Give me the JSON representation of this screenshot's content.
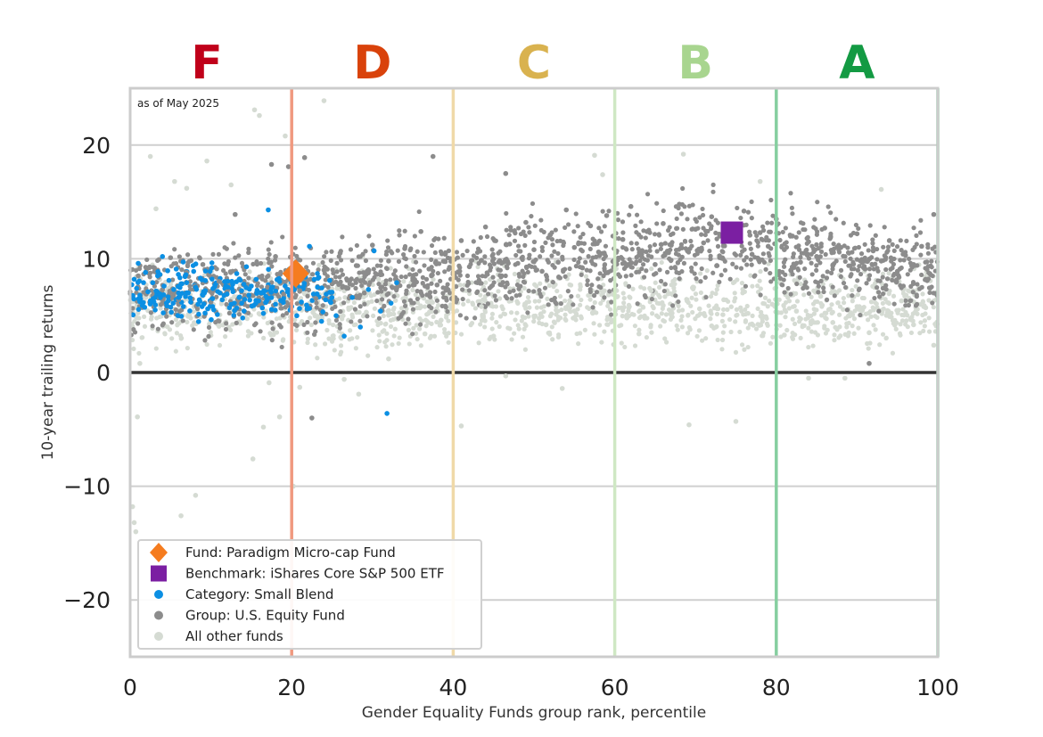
{
  "chart_data": {
    "type": "scatter",
    "note": "as of May 2025",
    "xlabel": "Gender Equality Funds group rank, percentile",
    "ylabel": "10-year trailing returns",
    "xlim": [
      0,
      100
    ],
    "ylim": [
      -25,
      25
    ],
    "x_ticks": [
      0,
      20,
      40,
      60,
      80,
      100
    ],
    "y_ticks": [
      -20,
      -10,
      0,
      10,
      20
    ],
    "grid": "horizontal",
    "grades": [
      {
        "label": "F",
        "center": 9.5,
        "color": "#c0001a"
      },
      {
        "label": "D",
        "center": 30,
        "color": "#d9420b"
      },
      {
        "label": "C",
        "center": 50,
        "color": "#d9b24f"
      },
      {
        "label": "B",
        "center": 70,
        "color": "#a8d58f"
      },
      {
        "label": "A",
        "center": 90,
        "color": "#139a43"
      }
    ],
    "grade_boundaries": [
      {
        "x": 20,
        "color": "#f0997f"
      },
      {
        "x": 40,
        "color": "#f0d9a8"
      },
      {
        "x": 60,
        "color": "#cfe8c4"
      },
      {
        "x": 80,
        "color": "#86cfa0"
      },
      {
        "x": 100,
        "color": "#86cfa0"
      }
    ],
    "legend_position": "lower-left",
    "series": [
      {
        "name": "Fund: Paradigm Micro-cap Fund",
        "marker": "diamond",
        "color": "#f57c1f",
        "points": [
          [
            20.5,
            8.7
          ]
        ]
      },
      {
        "name": "Benchmark: iShares Core S&P 500 ETF",
        "marker": "square",
        "color": "#7b1fa2",
        "points": [
          [
            74.5,
            12.3
          ]
        ]
      },
      {
        "name": "Category: Small Blend",
        "marker": "dot",
        "color": "#0b8fe3",
        "points": [
          [
            0.5,
            8.2
          ],
          [
            0.8,
            7.4
          ],
          [
            1.0,
            9.6
          ],
          [
            1.2,
            6.8
          ],
          [
            1.5,
            5.9
          ],
          [
            1.9,
            8.8
          ],
          [
            2.2,
            7.1
          ],
          [
            2.5,
            6.3
          ],
          [
            2.8,
            7.9
          ],
          [
            3.1,
            5.5
          ],
          [
            3.4,
            8.5
          ],
          [
            3.7,
            6.9
          ],
          [
            4.0,
            10.2
          ],
          [
            4.2,
            7.6
          ],
          [
            4.5,
            6.1
          ],
          [
            4.8,
            8.1
          ],
          [
            5.1,
            5.3
          ],
          [
            5.4,
            7.3
          ],
          [
            5.7,
            9.1
          ],
          [
            6.0,
            6.6
          ],
          [
            6.3,
            7.8
          ],
          [
            6.6,
            5.8
          ],
          [
            6.9,
            8.6
          ],
          [
            7.2,
            7.0
          ],
          [
            7.5,
            6.2
          ],
          [
            7.8,
            9.4
          ],
          [
            8.1,
            7.5
          ],
          [
            8.4,
            6.0
          ],
          [
            8.7,
            8.3
          ],
          [
            9.0,
            6.8
          ],
          [
            9.3,
            7.2
          ],
          [
            9.6,
            5.6
          ],
          [
            9.9,
            8.9
          ],
          [
            10.2,
            6.5
          ],
          [
            10.5,
            7.7
          ],
          [
            10.8,
            5.1
          ],
          [
            11.1,
            7.0
          ],
          [
            11.4,
            6.4
          ],
          [
            11.7,
            8.0
          ],
          [
            12.0,
            6.9
          ],
          [
            12.3,
            5.7
          ],
          [
            12.6,
            7.4
          ],
          [
            12.9,
            6.1
          ],
          [
            13.2,
            8.7
          ],
          [
            13.5,
            6.6
          ],
          [
            13.8,
            7.2
          ],
          [
            14.1,
            5.4
          ],
          [
            14.4,
            9.3
          ],
          [
            14.7,
            6.8
          ],
          [
            15.0,
            7.6
          ],
          [
            15.3,
            5.9
          ],
          [
            15.6,
            8.2
          ],
          [
            15.9,
            6.3
          ],
          [
            16.2,
            7.0
          ],
          [
            16.5,
            5.2
          ],
          [
            16.8,
            6.7
          ],
          [
            17.1,
            14.3
          ],
          [
            17.5,
            7.4
          ],
          [
            18.0,
            6.0
          ],
          [
            18.5,
            8.0
          ],
          [
            19.0,
            6.5
          ],
          [
            19.5,
            7.1
          ],
          [
            20.0,
            5.8
          ],
          [
            20.7,
            7.7
          ],
          [
            21.2,
            6.2
          ],
          [
            21.7,
            8.4
          ],
          [
            22.2,
            11.1
          ],
          [
            22.7,
            6.9
          ],
          [
            23.2,
            7.5
          ],
          [
            23.7,
            4.5
          ],
          [
            24.2,
            6.4
          ],
          [
            24.7,
            8.1
          ],
          [
            25.5,
            5.0
          ],
          [
            26.5,
            3.2
          ],
          [
            27.5,
            6.6
          ],
          [
            28.5,
            4.0
          ],
          [
            29.5,
            7.3
          ],
          [
            30.2,
            10.7
          ],
          [
            31.0,
            5.4
          ],
          [
            31.8,
            -3.6
          ],
          [
            32.3,
            6.1
          ],
          [
            33.0,
            7.9
          ]
        ]
      },
      {
        "name": "Group: U.S. Equity Fund",
        "marker": "dot",
        "color": "#8c8c8c",
        "points": [
          [
            1,
            8.5
          ],
          [
            2,
            6.9
          ],
          [
            3,
            9.2
          ],
          [
            4,
            7.3
          ],
          [
            5,
            10.1
          ],
          [
            6,
            6.4
          ],
          [
            7,
            8.8
          ],
          [
            8,
            7.6
          ],
          [
            9,
            9.5
          ],
          [
            10,
            6.2
          ],
          [
            11,
            8.0
          ],
          [
            12,
            7.1
          ],
          [
            13,
            13.9
          ],
          [
            14,
            9.3
          ],
          [
            15,
            6.8
          ],
          [
            16,
            8.4
          ],
          [
            17,
            7.5
          ],
          [
            17.5,
            18.3
          ],
          [
            18,
            10.2
          ],
          [
            19,
            6.9
          ],
          [
            19.6,
            18.1
          ],
          [
            20.5,
            9.7
          ],
          [
            21,
            7.2
          ],
          [
            21.6,
            18.9
          ],
          [
            22,
            8.9
          ],
          [
            22.5,
            -4.0
          ],
          [
            23,
            6.5
          ],
          [
            24,
            9.0
          ],
          [
            25,
            7.8
          ],
          [
            26,
            10.5
          ],
          [
            27,
            8.1
          ],
          [
            28,
            9.4
          ],
          [
            29,
            7.0
          ],
          [
            30,
            11.2
          ],
          [
            31,
            8.6
          ],
          [
            32,
            9.8
          ],
          [
            33,
            7.4
          ],
          [
            34,
            10.9
          ],
          [
            35,
            8.3
          ],
          [
            36,
            12.4
          ],
          [
            37,
            9.1
          ],
          [
            37.5,
            19.0
          ],
          [
            38,
            7.7
          ],
          [
            39,
            10.4
          ],
          [
            40,
            8.8
          ],
          [
            41,
            11.6
          ],
          [
            42,
            9.3
          ],
          [
            43,
            7.9
          ],
          [
            44,
            12.8
          ],
          [
            45,
            10.0
          ],
          [
            46,
            8.5
          ],
          [
            46.5,
            17.5
          ],
          [
            47,
            11.3
          ],
          [
            48,
            9.6
          ],
          [
            49,
            13.2
          ],
          [
            50,
            10.8
          ],
          [
            51,
            8.9
          ],
          [
            52,
            12.1
          ],
          [
            53,
            9.7
          ],
          [
            54,
            14.3
          ],
          [
            55,
            11.0
          ],
          [
            56,
            9.2
          ],
          [
            57,
            12.9
          ],
          [
            58,
            10.6
          ],
          [
            59,
            13.8
          ],
          [
            60,
            9.9
          ],
          [
            61,
            11.7
          ],
          [
            62,
            14.6
          ],
          [
            63,
            10.3
          ],
          [
            64,
            12.4
          ],
          [
            65,
            9.5
          ],
          [
            66,
            13.1
          ],
          [
            67,
            11.2
          ],
          [
            68,
            14.8
          ],
          [
            69,
            10.7
          ],
          [
            70,
            12.6
          ],
          [
            71,
            11.4
          ],
          [
            72,
            13.7
          ],
          [
            73,
            10.1
          ],
          [
            74,
            12.9
          ],
          [
            75,
            11.8
          ],
          [
            76,
            14.2
          ],
          [
            77,
            10.4
          ],
          [
            78,
            12.3
          ],
          [
            79,
            11.1
          ],
          [
            80,
            13.5
          ],
          [
            81,
            10.8
          ],
          [
            82,
            12.0
          ],
          [
            83,
            9.7
          ],
          [
            84,
            11.5
          ],
          [
            85,
            10.2
          ],
          [
            86,
            12.7
          ],
          [
            87,
            9.4
          ],
          [
            88,
            11.0
          ],
          [
            89,
            10.5
          ],
          [
            90,
            12.2
          ],
          [
            91,
            9.1
          ],
          [
            91.5,
            0.8
          ],
          [
            92,
            10.7
          ],
          [
            93,
            9.8
          ],
          [
            94,
            11.6
          ],
          [
            95,
            8.9
          ],
          [
            96,
            10.3
          ],
          [
            97,
            9.5
          ],
          [
            98,
            11.1
          ],
          [
            99,
            8.7
          ],
          [
            99.5,
            13.9
          ]
        ]
      },
      {
        "name": "All other funds",
        "marker": "dot",
        "color": "#d5dbd3",
        "points": [
          [
            0.3,
            -11.8
          ],
          [
            0.5,
            -13.2
          ],
          [
            0.7,
            -14.0
          ],
          [
            0.9,
            -3.9
          ],
          [
            1.2,
            0.8
          ],
          [
            2.5,
            19.0
          ],
          [
            3.2,
            14.4
          ],
          [
            5.5,
            16.8
          ],
          [
            6.3,
            -12.6
          ],
          [
            7.0,
            16.2
          ],
          [
            8.1,
            -10.8
          ],
          [
            9.5,
            18.6
          ],
          [
            12.5,
            16.5
          ],
          [
            15.2,
            -7.6
          ],
          [
            15.4,
            23.1
          ],
          [
            16.0,
            22.6
          ],
          [
            16.5,
            -4.8
          ],
          [
            17.2,
            -0.9
          ],
          [
            18.5,
            -3.9
          ],
          [
            19.2,
            20.8
          ],
          [
            20.2,
            -10.0
          ],
          [
            21.0,
            -1.3
          ],
          [
            24.0,
            23.9
          ],
          [
            26.5,
            -0.6
          ],
          [
            28.3,
            -1.9
          ],
          [
            32.0,
            1.2
          ],
          [
            36.5,
            3.4
          ],
          [
            38.5,
            4.6
          ],
          [
            41.0,
            -4.7
          ],
          [
            43.5,
            5.8
          ],
          [
            45.0,
            3.2
          ],
          [
            46.5,
            -0.3
          ],
          [
            48.0,
            6.1
          ],
          [
            51.5,
            4.2
          ],
          [
            53.5,
            -1.4
          ],
          [
            55.0,
            5.4
          ],
          [
            57.5,
            19.1
          ],
          [
            58.5,
            17.4
          ],
          [
            60.0,
            6.8
          ],
          [
            61.5,
            4.8
          ],
          [
            63.0,
            3.4
          ],
          [
            64.5,
            7.2
          ],
          [
            66.0,
            5.9
          ],
          [
            68.5,
            19.2
          ],
          [
            69.2,
            -4.6
          ],
          [
            70.5,
            5.6
          ],
          [
            72.0,
            4.1
          ],
          [
            73.5,
            6.4
          ],
          [
            75.0,
            -4.3
          ],
          [
            76.5,
            5.2
          ],
          [
            78.0,
            16.8
          ],
          [
            79.5,
            6.0
          ],
          [
            81.0,
            3.3
          ],
          [
            82.5,
            5.4
          ],
          [
            84.0,
            -0.5
          ],
          [
            85.5,
            6.7
          ],
          [
            87.0,
            4.4
          ],
          [
            88.5,
            -0.5
          ],
          [
            90.0,
            5.8
          ],
          [
            91.5,
            3.5
          ],
          [
            93.0,
            16.1
          ],
          [
            94.0,
            5.0
          ],
          [
            95.5,
            6.3
          ],
          [
            97.0,
            4.2
          ],
          [
            98.5,
            5.7
          ],
          [
            99.5,
            2.4
          ]
        ]
      }
    ]
  }
}
